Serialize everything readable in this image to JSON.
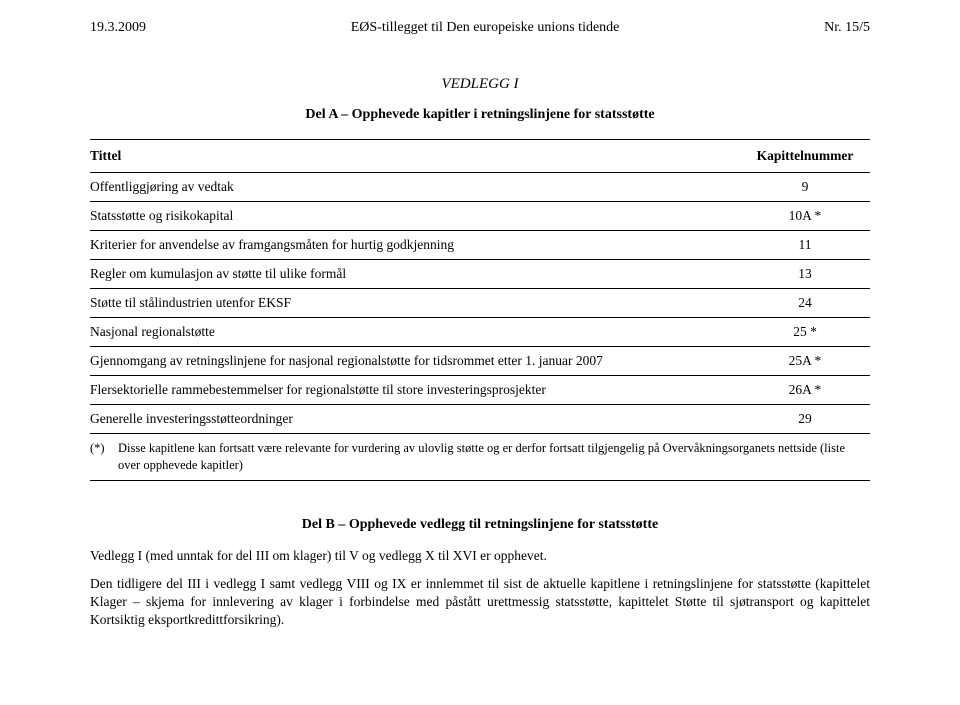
{
  "header": {
    "left": "19.3.2009",
    "center": "EØS-tillegget til Den europeiske unions tidende",
    "right": "Nr. 15/5"
  },
  "vedlegg_title": "VEDLEGG I",
  "section_a_heading": "Del A – Opphevede kapitler i retningslinjene for statsstøtte",
  "table": {
    "col_title": "Tittel",
    "col_num": "Kapittelnummer",
    "rows": [
      {
        "title": "Offentliggjøring av vedtak",
        "num": "9"
      },
      {
        "title": "Statsstøtte og risikokapital",
        "num": "10A *"
      },
      {
        "title": "Kriterier for anvendelse av framgangsmåten for hurtig godkjenning",
        "num": "11"
      },
      {
        "title": "Regler om kumulasjon av støtte til ulike formål",
        "num": "13"
      },
      {
        "title": "Støtte til stålindustrien utenfor EKSF",
        "num": "24"
      },
      {
        "title": "Nasjonal regionalstøtte",
        "num": "25 *"
      },
      {
        "title": "Gjennomgang av retningslinjene for nasjonal regionalstøtte for tidsrommet etter 1. januar 2007",
        "num": "25A *"
      },
      {
        "title": "Flersektorielle rammebestemmelser for regionalstøtte til store investeringsprosjekter",
        "num": "26A *"
      },
      {
        "title": "Generelle investeringsstøtteordninger",
        "num": "29"
      }
    ],
    "footnote_marker": "(*)",
    "footnote_text": "Disse kapitlene kan fortsatt være relevante for vurdering av ulovlig støtte og er derfor fortsatt tilgjengelig på Overvåkningsorganets nettside (liste over opphevede kapitler)"
  },
  "section_b_heading": "Del B – Opphevede vedlegg til retningslinjene for statsstøtte",
  "para1": "Vedlegg I (med unntak for del III om klager) til V og vedlegg X til XVI er opphevet.",
  "para2": "Den tidligere del III i vedlegg I samt vedlegg VIII og IX er innlemmet til sist de aktuelle kapitlene i retningslinjene for statsstøtte (kapittelet Klager – skjema for innlevering av klager i forbindelse med påstått urettmessig statsstøtte, kapittelet Støtte til sjøtransport og kapittelet Kortsiktig eksportkredittforsikring)."
}
